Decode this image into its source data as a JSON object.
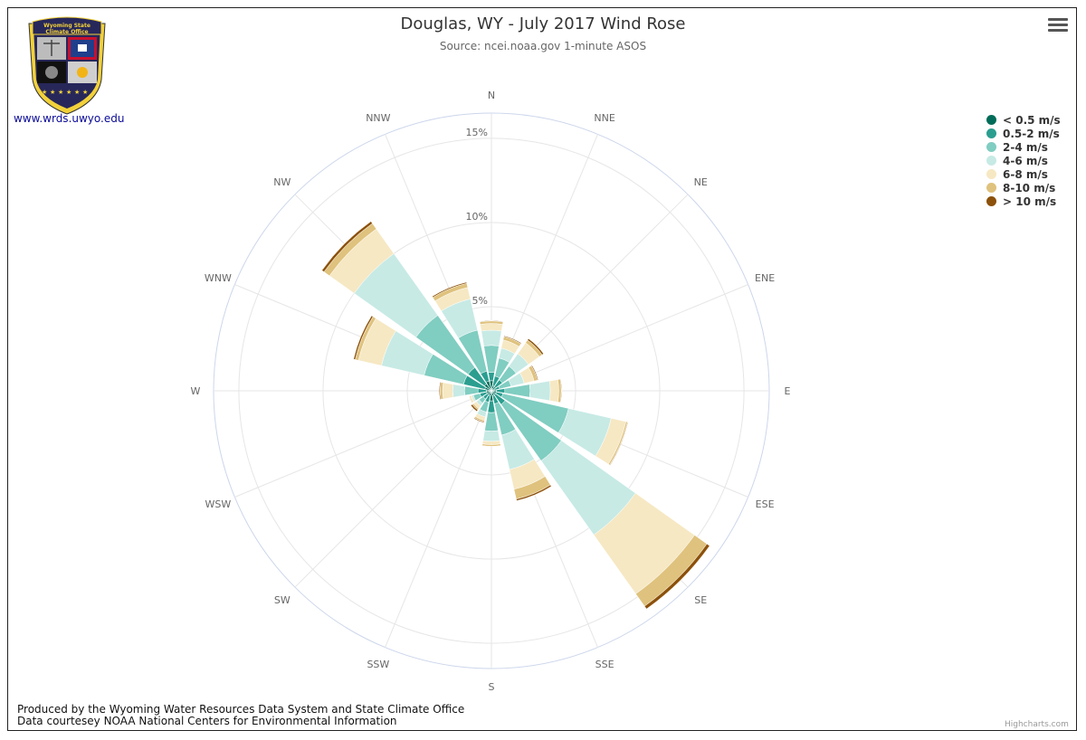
{
  "page": {
    "title": "Douglas, WY - July 2017 Wind Rose",
    "subtitle": "Source: ncei.noaa.gov 1-minute ASOS",
    "site_link": "www.wrds.uwyo.edu",
    "footer_line1": "Produced by the Wyoming Water Resources Data System and State Climate Office",
    "footer_line2": "Data courtesey NOAA National Centers for Environmental Information",
    "credits": "Highcharts.com",
    "logo_text_line1": "Wyoming State",
    "logo_text_line2": "Climate Office"
  },
  "chart_data": {
    "type": "windrose",
    "title": "Douglas, WY - July 2017 Wind Rose",
    "subtitle": "Source: ncei.noaa.gov 1-minute ASOS",
    "stacking": "normal",
    "directions": [
      "N",
      "NNE",
      "NE",
      "ENE",
      "E",
      "ESE",
      "SE",
      "SSE",
      "S",
      "SSW",
      "SW",
      "WSW",
      "W",
      "WNW",
      "NW",
      "NNW"
    ],
    "radial_axis": {
      "min": 0,
      "max": 16.5,
      "ticks": [
        5,
        10,
        15
      ],
      "tick_labels": [
        "5%",
        "10%",
        "15%"
      ]
    },
    "legend_position": "top-right",
    "series": [
      {
        "name": "< 0.5 m/s",
        "color": "#016c59",
        "values": [
          0.6,
          0.3,
          0.3,
          0.2,
          0.3,
          0.3,
          0.3,
          0.3,
          0.6,
          0.3,
          0.3,
          0.3,
          0.3,
          0.4,
          0.5,
          0.6
        ]
      },
      {
        "name": "0.5-2 m/s",
        "color": "#2b9e90",
        "values": [
          0.5,
          0.6,
          0.5,
          0.3,
          0.5,
          0.4,
          0.7,
          0.5,
          0.7,
          0.4,
          0.3,
          0.4,
          0.5,
          1.3,
          1.2,
          0.6
        ]
      },
      {
        "name": "2-4 m/s",
        "color": "#80cdc1",
        "values": [
          1.6,
          1.1,
          1.0,
          0.7,
          1.5,
          4.0,
          4.1,
          1.9,
          1.1,
          0.6,
          0.3,
          0.4,
          0.8,
          2.4,
          3.8,
          2.5
        ]
      },
      {
        "name": "4-6 m/s",
        "color": "#c7eae5",
        "values": [
          0.9,
          0.6,
          0.9,
          0.8,
          1.2,
          2.6,
          5.4,
          2.1,
          0.6,
          0.3,
          0.2,
          0.1,
          0.7,
          2.6,
          4.5,
          1.9
        ]
      },
      {
        "name": "6-8 m/s",
        "color": "#f6e8c3",
        "values": [
          0.4,
          0.5,
          0.8,
          0.6,
          0.5,
          0.9,
          4.3,
          1.2,
          0.2,
          0.2,
          0.2,
          0.1,
          0.6,
          1.4,
          1.8,
          0.7
        ]
      },
      {
        "name": "8-10 m/s",
        "color": "#dfc27d",
        "values": [
          0.15,
          0.2,
          0.2,
          0.2,
          0.15,
          0.1,
          0.9,
          0.6,
          0.1,
          0.1,
          0.1,
          0.05,
          0.15,
          0.2,
          0.4,
          0.25
        ]
      },
      {
        "name": "> 10 m/s",
        "color": "#8c510a",
        "values": [
          0.03,
          0.05,
          0.1,
          0.05,
          0.03,
          0.03,
          0.2,
          0.1,
          0.0,
          0.05,
          0.1,
          0.0,
          0.05,
          0.1,
          0.15,
          0.07
        ]
      }
    ]
  }
}
